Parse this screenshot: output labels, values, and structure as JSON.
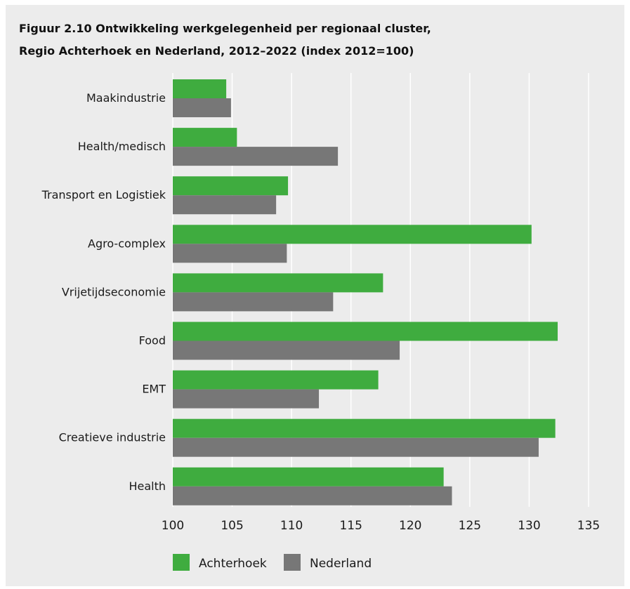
{
  "title_line1": "Figuur 2.10 Ontwikkeling werkgelegenheid per regionaal cluster,",
  "title_line2": "Regio Achterhoek en Nederland, 2012–2022 (index 2012=100)",
  "colors": {
    "background": "#ececec",
    "achterhoek": "#3fac3f",
    "nederland": "#777777",
    "grid": "#ffffff"
  },
  "chart_data": {
    "type": "bar",
    "orientation": "horizontal",
    "categories": [
      "Maakindustrie",
      "Health/medisch",
      "Transport en Logistiek",
      "Agro-complex",
      "Vrijetijdseconomie",
      "Food",
      "EMT",
      "Creatieve industrie",
      "Health"
    ],
    "series": [
      {
        "name": "Achterhoek",
        "values": [
          104.5,
          105.4,
          109.7,
          130.2,
          117.7,
          132.4,
          117.3,
          132.2,
          122.8
        ]
      },
      {
        "name": "Nederland",
        "values": [
          104.9,
          113.9,
          108.7,
          109.6,
          113.5,
          119.1,
          112.3,
          130.8,
          123.5
        ]
      }
    ],
    "xlim": [
      100,
      135
    ],
    "xticks": [
      100,
      105,
      110,
      115,
      120,
      125,
      130,
      135
    ],
    "grid": "vertical",
    "legend_position": "bottom"
  }
}
